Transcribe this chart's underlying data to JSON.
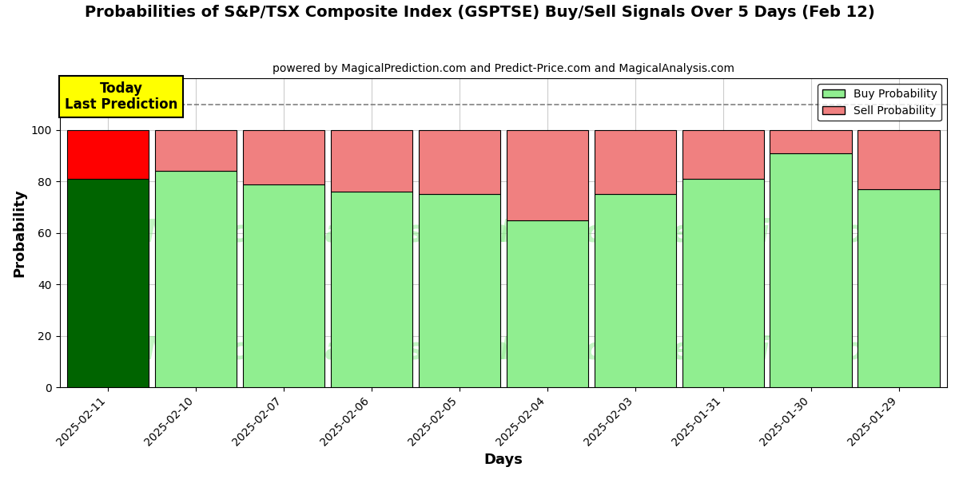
{
  "title": "Probabilities of S&P/TSX Composite Index (GSPTSE) Buy/Sell Signals Over 5 Days (Feb 12)",
  "subtitle": "powered by MagicalPrediction.com and Predict-Price.com and MagicalAnalysis.com",
  "xlabel": "Days",
  "ylabel": "Probability",
  "dates": [
    "2025-02-11",
    "2025-02-10",
    "2025-02-07",
    "2025-02-06",
    "2025-02-05",
    "2025-02-04",
    "2025-02-03",
    "2025-01-31",
    "2025-01-30",
    "2025-01-29"
  ],
  "buy_probs": [
    81,
    84,
    79,
    76,
    75,
    65,
    75,
    81,
    91,
    77
  ],
  "sell_probs": [
    19,
    16,
    21,
    24,
    25,
    35,
    25,
    19,
    9,
    23
  ],
  "buy_colors": [
    "#006400",
    "#90EE90",
    "#90EE90",
    "#90EE90",
    "#90EE90",
    "#90EE90",
    "#90EE90",
    "#90EE90",
    "#90EE90",
    "#90EE90"
  ],
  "sell_colors": [
    "#FF0000",
    "#F08080",
    "#F08080",
    "#F08080",
    "#F08080",
    "#F08080",
    "#F08080",
    "#F08080",
    "#F08080",
    "#F08080"
  ],
  "today_label": "Today\nLast Prediction",
  "legend_buy_label": "Buy Probability",
  "legend_sell_label": "Sell Probability",
  "ylim": [
    0,
    120
  ],
  "yticks": [
    0,
    20,
    40,
    60,
    80,
    100
  ],
  "dashed_line_y": 110,
  "watermark_line1": "MagicalAnalysis.com",
  "watermark_line2": "MagicalPrediction.com",
  "background_color": "#ffffff",
  "grid_color": "#cccccc",
  "bar_width": 0.93,
  "today_box_color": "#FFFF00",
  "today_box_edgecolor": "#000000"
}
